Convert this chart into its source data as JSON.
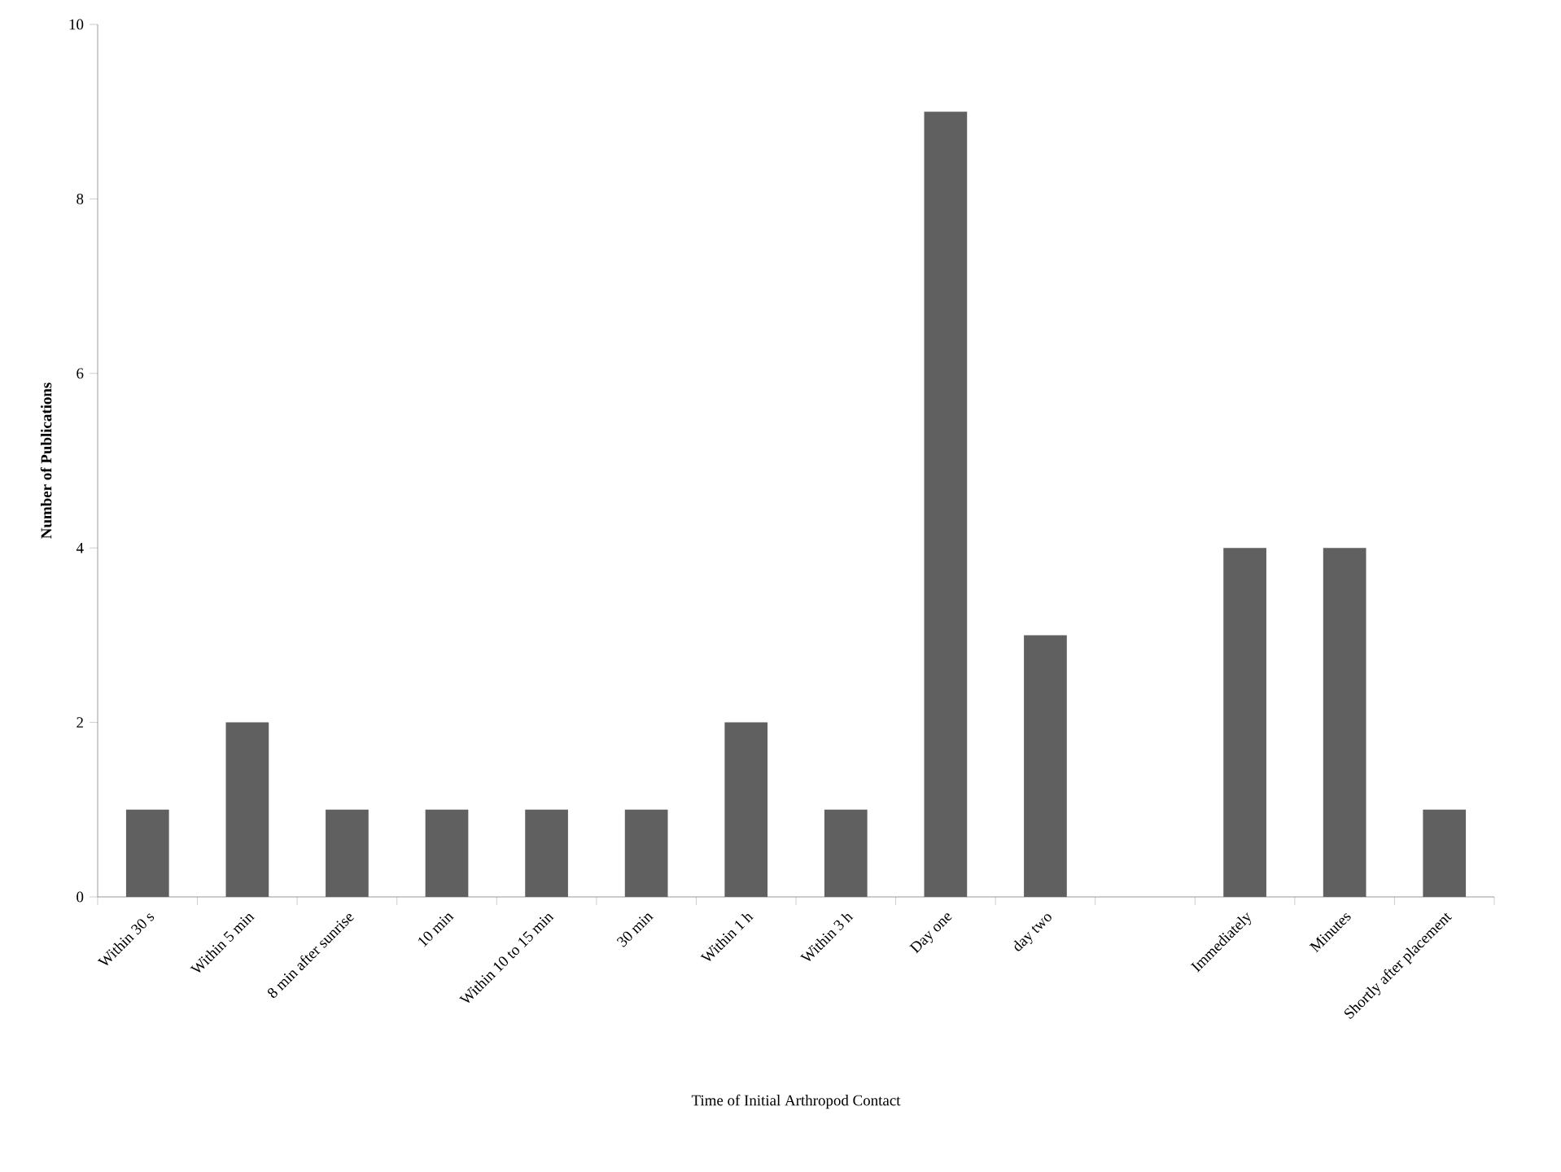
{
  "chart_data": {
    "type": "bar",
    "xlabel": "Time of Initial Arthropod Contact",
    "ylabel": "Number of Publications",
    "categories": [
      "Within 30 s",
      "Within 5 min",
      "8 min after sunrise",
      "10 min",
      "Within 10 to 15 min",
      "30 min",
      "Within 1 h",
      "Within 3 h",
      "Day one",
      "day two",
      null,
      "Immediately",
      "Minutes",
      "Shortly after placement"
    ],
    "values": [
      1,
      2,
      1,
      1,
      1,
      1,
      2,
      1,
      9,
      3,
      null,
      4,
      4,
      1
    ],
    "color": "#606060",
    "ylim": [
      0,
      10
    ],
    "yticks": [
      0,
      2,
      4,
      6,
      8,
      10
    ],
    "grid": false
  }
}
